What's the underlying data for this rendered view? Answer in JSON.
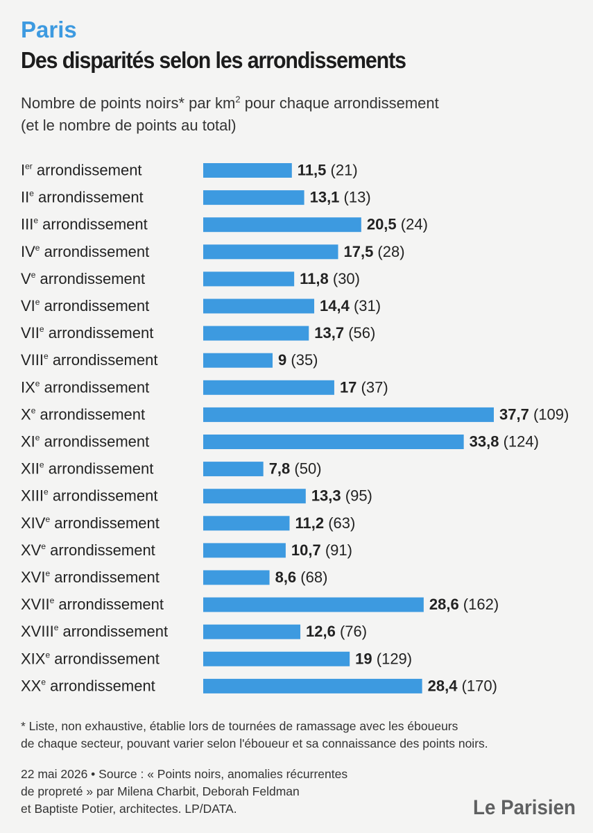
{
  "header": {
    "kicker": "Paris",
    "title": "Des disparités selon les arrondissements",
    "subtitle_line1_a": "Nombre de points noirs* par km",
    "subtitle_sup": "2",
    "subtitle_line1_b": " pour chaque arrondissement",
    "subtitle_line2": "(et le nombre de points au total)"
  },
  "chart_data": {
    "type": "bar",
    "orientation": "horizontal",
    "categories": [
      {
        "num": "I",
        "sup": "er",
        "suffix": " arrondissement"
      },
      {
        "num": "II",
        "sup": "e",
        "suffix": " arrondissement"
      },
      {
        "num": "III",
        "sup": "e",
        "suffix": " arrondissement"
      },
      {
        "num": "IV",
        "sup": "e",
        "suffix": " arrondissement"
      },
      {
        "num": "V",
        "sup": "e",
        "suffix": " arrondissement"
      },
      {
        "num": "VI",
        "sup": "e",
        "suffix": " arrondissement"
      },
      {
        "num": "VII",
        "sup": "e",
        "suffix": " arrondissement"
      },
      {
        "num": "VIII",
        "sup": "e",
        "suffix": " arrondissement"
      },
      {
        "num": "IX",
        "sup": "e",
        "suffix": " arrondissement"
      },
      {
        "num": "X",
        "sup": "e",
        "suffix": " arrondissement"
      },
      {
        "num": "XI",
        "sup": "e",
        "suffix": " arrondissement"
      },
      {
        "num": "XII",
        "sup": "e",
        "suffix": " arrondissement"
      },
      {
        "num": "XIII",
        "sup": "e",
        "suffix": " arrondissement"
      },
      {
        "num": "XIV",
        "sup": "e",
        "suffix": " arrondissement"
      },
      {
        "num": "XV",
        "sup": "e",
        "suffix": " arrondissement"
      },
      {
        "num": "XVI",
        "sup": "e",
        "suffix": " arrondissement"
      },
      {
        "num": "XVII",
        "sup": "e",
        "suffix": " arrondissement"
      },
      {
        "num": "XVIII",
        "sup": "e",
        "suffix": " arrondissement"
      },
      {
        "num": "XIX",
        "sup": "e",
        "suffix": " arrondissement"
      },
      {
        "num": "XX",
        "sup": "e",
        "suffix": " arrondissement"
      }
    ],
    "values": [
      11.5,
      13.1,
      20.5,
      17.5,
      11.8,
      14.4,
      13.7,
      9,
      17,
      37.7,
      33.8,
      7.8,
      13.3,
      11.2,
      10.7,
      8.6,
      28.6,
      12.6,
      19,
      28.4
    ],
    "value_labels": [
      "11,5",
      "13,1",
      "20,5",
      "17,5",
      "11,8",
      "14,4",
      "13,7",
      "9",
      "17",
      "37,7",
      "33,8",
      "7,8",
      "13,3",
      "11,2",
      "10,7",
      "8,6",
      "28,6",
      "12,6",
      "19",
      "28,4"
    ],
    "totals": [
      21,
      13,
      24,
      28,
      30,
      31,
      56,
      35,
      37,
      109,
      124,
      50,
      95,
      63,
      91,
      68,
      162,
      76,
      129,
      170
    ],
    "total_labels": [
      "(21)",
      "(13)",
      "(24)",
      "(28)",
      "(30)",
      "(31)",
      "(56)",
      "(35)",
      "(37)",
      "(109)",
      "(124)",
      "(50)",
      "(95)",
      "(63)",
      "(91)",
      "(68)",
      "(162)",
      "(76)",
      "(129)",
      "(170)"
    ],
    "xlim": [
      0,
      37.7
    ],
    "bar_color": "#3d9ae0",
    "grid": false,
    "axis_visible": false
  },
  "footer": {
    "footnote_line1": "* Liste, non exhaustive, établie lors de tournées de ramassage avec les éboueurs",
    "footnote_line2": "de chaque secteur, pouvant varier selon l'éboueur et sa connaissance des points noirs.",
    "source_line1": "22 mai 2026 • Source : « Points noirs, anomalies récurrentes",
    "source_line2": "de propreté » par Milena Charbit, Deborah Feldman",
    "source_line3": "et Baptiste Potier, architectes. LP/DATA.",
    "logo_text": "Le Parisien"
  },
  "colors": {
    "accent": "#3d9ae0",
    "text": "#222222",
    "background": "#f4f4f3",
    "logo": "#5f6061"
  }
}
